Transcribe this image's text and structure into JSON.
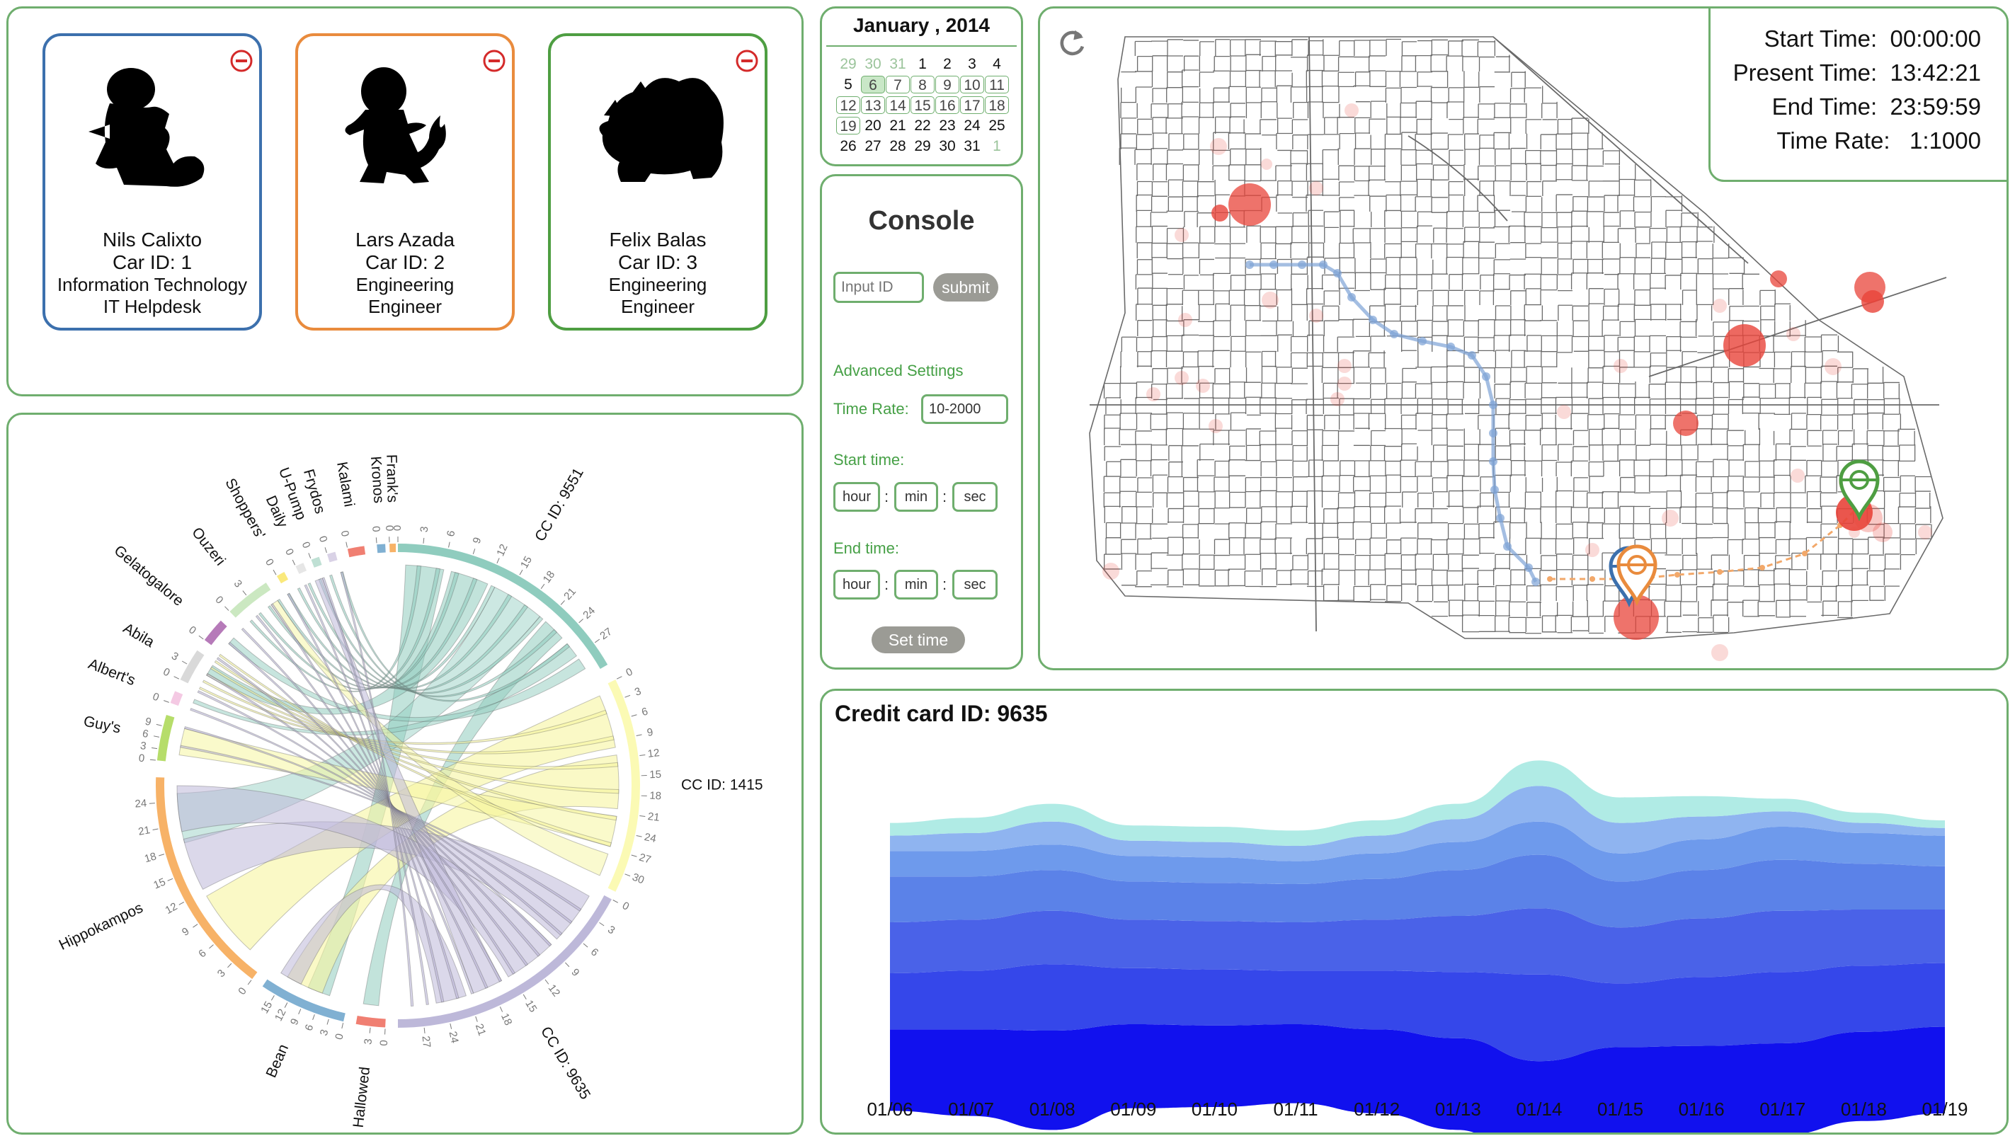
{
  "employees": [
    {
      "name": "Nils Calixto",
      "car_id": "Car ID: 1",
      "department": "Information Technology",
      "title": "IT Helpdesk",
      "color": "#3c70ad"
    },
    {
      "name": "Lars Azada",
      "car_id": "Car ID: 2",
      "department": "Engineering",
      "title": "Engineer",
      "color": "#e98b3d"
    },
    {
      "name": "Felix Balas",
      "car_id": "Car ID: 3",
      "department": "Engineering",
      "title": "Engineer",
      "color": "#4e9e42"
    }
  ],
  "calendar": {
    "title": "January , 2014",
    "days": [
      {
        "d": "29",
        "s": "muted"
      },
      {
        "d": "30",
        "s": "muted"
      },
      {
        "d": "31",
        "s": "muted"
      },
      {
        "d": "1",
        "s": ""
      },
      {
        "d": "2",
        "s": ""
      },
      {
        "d": "3",
        "s": ""
      },
      {
        "d": "4",
        "s": ""
      },
      {
        "d": "5",
        "s": ""
      },
      {
        "d": "6",
        "s": "sel"
      },
      {
        "d": "7",
        "s": "boxed"
      },
      {
        "d": "8",
        "s": "boxed"
      },
      {
        "d": "9",
        "s": "boxed"
      },
      {
        "d": "10",
        "s": "boxed"
      },
      {
        "d": "11",
        "s": "boxed"
      },
      {
        "d": "12",
        "s": "boxed"
      },
      {
        "d": "13",
        "s": "boxed"
      },
      {
        "d": "14",
        "s": "boxed"
      },
      {
        "d": "15",
        "s": "boxed"
      },
      {
        "d": "16",
        "s": "boxed"
      },
      {
        "d": "17",
        "s": "boxed"
      },
      {
        "d": "18",
        "s": "boxed"
      },
      {
        "d": "19",
        "s": "boxed"
      },
      {
        "d": "20",
        "s": ""
      },
      {
        "d": "21",
        "s": ""
      },
      {
        "d": "22",
        "s": ""
      },
      {
        "d": "23",
        "s": ""
      },
      {
        "d": "24",
        "s": ""
      },
      {
        "d": "25",
        "s": ""
      },
      {
        "d": "26",
        "s": ""
      },
      {
        "d": "27",
        "s": ""
      },
      {
        "d": "28",
        "s": ""
      },
      {
        "d": "29",
        "s": ""
      },
      {
        "d": "30",
        "s": ""
      },
      {
        "d": "31",
        "s": ""
      },
      {
        "d": "1",
        "s": "muted"
      }
    ]
  },
  "console": {
    "title": "Console",
    "id_placeholder": "Input ID",
    "submit_label": "submit",
    "advanced_label": "Advanced Settings",
    "time_rate_label": "Time Rate:",
    "time_rate_value": "10-2000",
    "start_label": "Start time:",
    "end_label": "End time:",
    "hour": "hour",
    "min": "min",
    "sec": "sec",
    "colon": ":",
    "set_time_label": "Set time"
  },
  "time_info": {
    "start": "Start Time:  00:00:00",
    "present": "Present Time:  13:42:21",
    "end": "End Time:  23:59:59",
    "rate": "Time Rate:   1:1000"
  },
  "chord": {
    "groups": [
      {
        "name": "CC ID: 9551",
        "color": "#8fccbe",
        "ticks": [
          "0",
          "3",
          "6",
          "9",
          "12",
          "15",
          "18",
          "21",
          "24",
          "27"
        ]
      },
      {
        "name": "CC ID: 1415",
        "color": "#fbfab4",
        "ticks": [
          "0",
          "3",
          "6",
          "9",
          "12",
          "15",
          "18",
          "21",
          "24",
          "27",
          "30"
        ]
      },
      {
        "name": "CC ID: 9635",
        "color": "#bdb8d9",
        "ticks": [
          "0",
          "3",
          "6",
          "9",
          "12",
          "15",
          "18",
          "21",
          "24",
          "27"
        ]
      },
      {
        "name": "Hallowed",
        "color": "#f07f72",
        "ticks": [
          "0",
          "3"
        ]
      },
      {
        "name": "Bean",
        "color": "#80b0d2",
        "ticks": [
          "0",
          "3",
          "6",
          "9",
          "12",
          "15"
        ]
      },
      {
        "name": "Hippokampos",
        "color": "#f7b267",
        "ticks": [
          "0",
          "3",
          "6",
          "9",
          "12",
          "15",
          "18",
          "21",
          "24"
        ]
      },
      {
        "name": "Guy's",
        "color": "#b6dd6a",
        "ticks": [
          "0",
          "3",
          "6",
          "9"
        ]
      },
      {
        "name": "Albert's",
        "color": "#f4c9e3",
        "ticks": [
          "0"
        ]
      },
      {
        "name": "Abila",
        "color": "#d9d9d9",
        "ticks": [
          "0",
          "3"
        ]
      },
      {
        "name": "Gelatogalore",
        "color": "#b67ab9",
        "ticks": [
          "0"
        ]
      },
      {
        "name": "Ouzeri",
        "color": "#cbe8c1",
        "ticks": [
          "0",
          "3"
        ]
      },
      {
        "name": "Shoppers'",
        "color": "#fae97c",
        "ticks": [
          "0"
        ]
      },
      {
        "name": "Daily",
        "color": "#e6e6e6",
        "ticks": [
          "0"
        ]
      },
      {
        "name": "U-Pump",
        "color": "#bfe0d4",
        "ticks": [
          "0"
        ]
      },
      {
        "name": "Frydos",
        "color": "#d9d2e6",
        "ticks": [
          "0"
        ]
      },
      {
        "name": "Kalami",
        "color": "#f07f72",
        "ticks": [
          "0"
        ]
      },
      {
        "name": "Kronos",
        "color": "#80b0d2",
        "ticks": [
          "0"
        ]
      },
      {
        "name": "Frank's",
        "color": "#f7b267",
        "ticks": [
          "0"
        ]
      }
    ]
  },
  "chart_data": {
    "type": "area",
    "title": "Credit card ID: 9635",
    "categories": [
      "01/06",
      "01/07",
      "01/08",
      "01/09",
      "01/10",
      "01/11",
      "01/12",
      "01/13",
      "01/14",
      "01/15",
      "01/16",
      "01/17",
      "01/18",
      "01/19"
    ],
    "series": [
      {
        "values": [
          3.2,
          3.4,
          3.9,
          3.3,
          3.2,
          3.1,
          3.3,
          3.6,
          4.4,
          3.5,
          3.6,
          3.6,
          3.5,
          3.4
        ]
      },
      {
        "values": [
          2.2,
          2.3,
          2.6,
          2.2,
          2.2,
          2.1,
          2.3,
          2.6,
          3.4,
          2.5,
          2.7,
          2.8,
          2.6,
          2.5
        ]
      },
      {
        "values": [
          2.0,
          2.0,
          2.1,
          1.9,
          1.9,
          1.9,
          2.0,
          2.2,
          2.6,
          2.2,
          2.3,
          2.4,
          2.2,
          2.1
        ]
      },
      {
        "values": [
          1.8,
          1.7,
          1.6,
          1.5,
          1.5,
          1.5,
          1.6,
          1.8,
          2.1,
          1.8,
          1.9,
          2.0,
          1.8,
          1.7
        ]
      },
      {
        "values": [
          1.0,
          1.0,
          1.0,
          1.0,
          1.0,
          0.9,
          1.0,
          1.1,
          1.3,
          1.1,
          1.2,
          1.3,
          1.2,
          1.2
        ]
      },
      {
        "values": [
          0.6,
          0.7,
          0.9,
          0.6,
          0.6,
          0.6,
          0.7,
          0.9,
          1.4,
          1.2,
          0.9,
          0.6,
          0.4,
          0.3
        ]
      },
      {
        "values": [
          0.5,
          0.6,
          0.7,
          0.6,
          0.6,
          0.6,
          0.6,
          0.6,
          1.0,
          1.0,
          0.8,
          0.5,
          0.4,
          0.3
        ]
      }
    ],
    "colors": [
      "#1111ee",
      "#3547ea",
      "#4a62e8",
      "#5b82e8",
      "#6e9aec",
      "#8fb4f0",
      "#b0ebe5"
    ]
  },
  "map": {
    "refresh_icon": "refresh-icon"
  }
}
